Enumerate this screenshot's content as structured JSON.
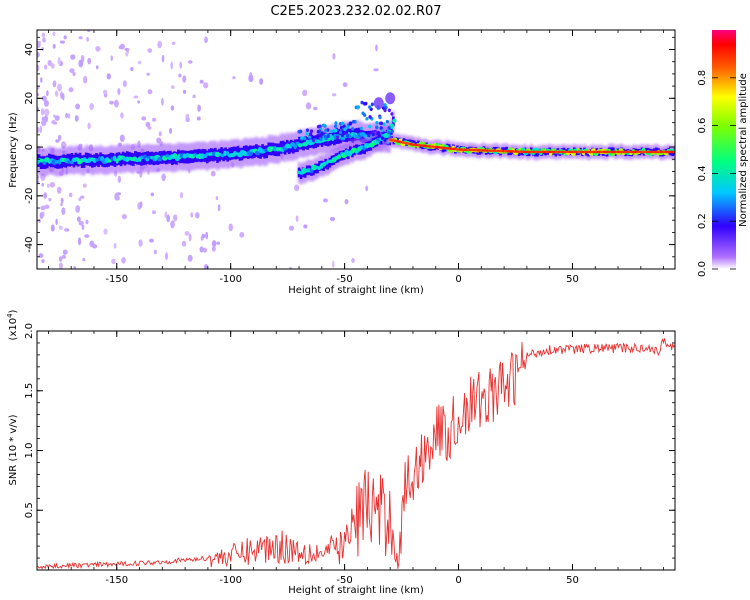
{
  "figure": {
    "title": "C2E5.2023.232.02.02.R07"
  },
  "colors": {
    "trace": "#e83030",
    "axis": "#000000",
    "background": "#ffffff"
  },
  "chart_data": [
    {
      "type": "heatmap",
      "xlabel": "Height of straight line (km)",
      "ylabel": "Frequency (Hz)",
      "xlim": [
        -185,
        95
      ],
      "ylim": [
        -50,
        48
      ],
      "xticks": [
        -150,
        -100,
        -50,
        0,
        50
      ],
      "yticks": [
        -40,
        -20,
        0,
        20,
        40
      ],
      "colorbar": {
        "label": "Normalized spectral amplitude",
        "range": [
          0,
          1
        ],
        "ticks": [
          0.0,
          0.2,
          0.4,
          0.6,
          0.8
        ],
        "tick_labels": [
          "0.0",
          "0.2",
          "0.4",
          "0.6",
          "0.8"
        ],
        "colormap": "rainbow"
      },
      "features": [
        {
          "name": "main-trace",
          "points": [
            [
              -185,
              -6
            ],
            [
              -150,
              -5
            ],
            [
              -120,
              -4
            ],
            [
              -100,
              -3
            ],
            [
              -80,
              -1
            ],
            [
              -60,
              3
            ],
            [
              -45,
              5
            ],
            [
              -30,
              3
            ],
            [
              -20,
              1
            ],
            [
              0,
              -1
            ],
            [
              30,
              -2
            ],
            [
              95,
              -2
            ]
          ]
        },
        {
          "name": "branch-trace",
          "points": [
            [
              -70,
              -11
            ],
            [
              -60,
              -8
            ],
            [
              -50,
              -3
            ],
            [
              -40,
              0
            ],
            [
              -30,
              6
            ],
            [
              -28,
              12
            ]
          ]
        },
        {
          "name": "blob",
          "points": [
            [
              -35,
              18
            ],
            [
              -30,
              20
            ]
          ]
        }
      ]
    },
    {
      "type": "line",
      "xlabel": "Height of straight line (km)",
      "ylabel": "SNR (10 * v/v)",
      "y_multiplier": "(x10^4)",
      "xlim": [
        -185,
        95
      ],
      "ylim": [
        0,
        2.0
      ],
      "xticks": [
        -150,
        -100,
        -50,
        0,
        50
      ],
      "yticks": [
        0.5,
        1.0,
        1.5,
        2.0
      ],
      "ytick_labels": [
        "0.5",
        "1.0",
        "1.5",
        "2.0"
      ],
      "series": [
        {
          "x": [
            -185,
            -170,
            -150,
            -130,
            -110,
            -100,
            -90,
            -80,
            -70,
            -60,
            -50,
            -45,
            -40,
            -35,
            -30,
            -26,
            -24,
            -20,
            -15,
            -10,
            -5,
            0,
            5,
            10,
            15,
            20,
            25,
            30,
            40,
            50,
            60,
            70,
            80,
            85,
            88,
            90,
            92,
            95
          ],
          "y": [
            0.03,
            0.04,
            0.05,
            0.07,
            0.1,
            0.13,
            0.18,
            0.22,
            0.18,
            0.15,
            0.22,
            0.45,
            0.6,
            0.5,
            0.45,
            0.1,
            0.7,
            0.8,
            1.0,
            1.2,
            1.15,
            1.3,
            1.4,
            1.45,
            1.5,
            1.55,
            1.65,
            1.8,
            1.85,
            1.85,
            1.86,
            1.86,
            1.86,
            1.87,
            1.8,
            1.95,
            1.88,
            1.87
          ]
        }
      ]
    }
  ]
}
